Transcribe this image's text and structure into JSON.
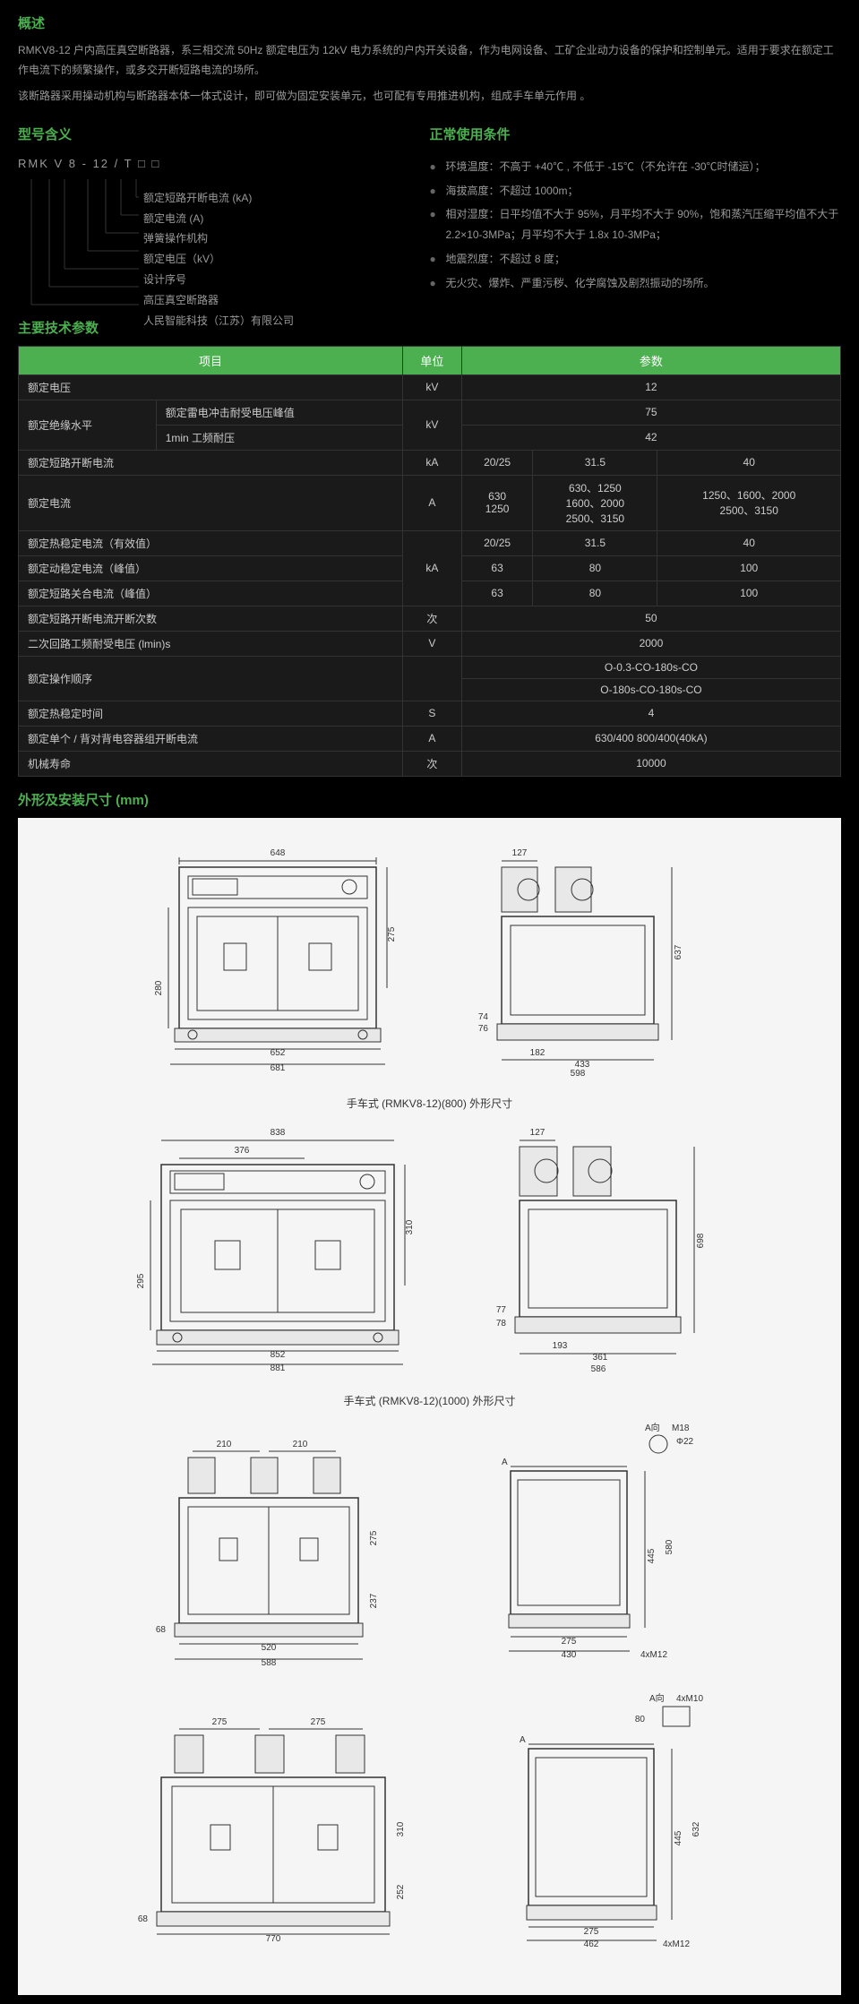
{
  "overview": {
    "title": "概述",
    "p1": "RMKV8-12 户内高压真空断路器，系三相交流 50Hz 额定电压为 12kV 电力系统的户内开关设备，作为电网设备、工矿企业动力设备的保护和控制单元。适用于要求在额定工作电流下的频繁操作，或多交开断短路电流的场所。",
    "p2": "该断路器采用操动机构与断路器本体一体式设计，即可做为固定安装单元，也可配有专用推进机构，组成手车单元作用 。"
  },
  "model": {
    "title": "型号含义",
    "code": "RMK  V  8  -  12 / T □  □",
    "lines": [
      "额定短路开断电流 (kA)",
      "额定电流 (A)",
      "弹簧操作机构",
      "额定电压（kV）",
      "设计序号",
      "高压真空断路器",
      "人民智能科技（江苏）有限公司"
    ]
  },
  "conditions": {
    "title": "正常使用条件",
    "items": [
      "环境温度：不高于 +40℃ , 不低于 -15℃（不允许在 -30℃时储运）；",
      "海拔高度：不超过 1000m；",
      "相对湿度：日平均值不大于 95%，月平均不大于 90%，饱和蒸汽压缩平均值不大于 2.2×10-3MPa；月平均不大于 1.8x 10-3MPa；",
      "地震烈度：不超过 8 度；",
      "无火灾、爆炸、严重污秽、化学腐蚀及剧烈振动的场所。"
    ]
  },
  "params": {
    "title": "主要技术参数",
    "headers": [
      "项目",
      "单位",
      "参数"
    ],
    "rows": [
      {
        "label": "额定电压",
        "unit": "kV",
        "values": [
          "12"
        ],
        "span": 3
      },
      {
        "label": "额定绝缘水平",
        "sublabel": "额定雷电冲击耐受电压峰值",
        "unit": "kV",
        "values": [
          "75"
        ],
        "span": 3,
        "rowspan": 2
      },
      {
        "sublabel": "1min 工频耐压",
        "values": [
          "42"
        ],
        "span": 3
      },
      {
        "label": "额定短路开断电流",
        "unit": "kA",
        "values": [
          "20/25",
          "31.5",
          "40"
        ]
      },
      {
        "label": "额定电流",
        "unit": "A",
        "values": [
          "630\n1250",
          "630、1250\n1600、2000\n2500、3150",
          "1250、1600、2000\n2500、3150"
        ]
      },
      {
        "label": "额定热稳定电流（有效值）",
        "unit": "kA",
        "values": [
          "20/25",
          "31.5",
          "40"
        ],
        "rowspan": 3
      },
      {
        "label": "额定动稳定电流（峰值）",
        "values": [
          "63",
          "80",
          "100"
        ]
      },
      {
        "label": "额定短路关合电流（峰值）",
        "values": [
          "63",
          "80",
          "100"
        ]
      },
      {
        "label": "额定短路开断电流开断次数",
        "unit": "次",
        "values": [
          "50"
        ],
        "span": 3
      },
      {
        "label": "二次回路工频耐受电压 (lmin)s",
        "unit": "V",
        "values": [
          "2000"
        ],
        "span": 3
      },
      {
        "label": "额定操作顺序",
        "unit": "",
        "values": [
          "O-0.3-CO-180s-CO"
        ],
        "span": 3,
        "rowspan": 2
      },
      {
        "values": [
          "O-180s-CO-180s-CO"
        ],
        "span": 3
      },
      {
        "label": "额定热稳定时间",
        "unit": "S",
        "values": [
          "4"
        ],
        "span": 3
      },
      {
        "label": "额定单个 / 背对背电容器组开断电流",
        "unit": "A",
        "values": [
          "630/400 800/400(40kA)"
        ],
        "span": 3
      },
      {
        "label": "机械寿命",
        "unit": "次",
        "values": [
          "10000"
        ],
        "span": 3
      }
    ]
  },
  "dimensions": {
    "title": "外形及安装尺寸 (mm)",
    "captions": [
      "手车式 (RMKV8-12)(800) 外形尺寸",
      "手车式 (RMKV8-12)(1000) 外形尺寸"
    ],
    "d1": {
      "w1": "648",
      "w2": "652",
      "w3": "681",
      "h1": "280",
      "h2": "275",
      "sw1": "127",
      "sw2": "182",
      "sw3": "433",
      "sw4": "598",
      "sh1": "637",
      "sh2": "74",
      "sh3": "76"
    },
    "d2": {
      "w1": "838",
      "w2": "376",
      "w3": "852",
      "w4": "881",
      "h1": "295",
      "h2": "310",
      "sw1": "127",
      "sw2": "193",
      "sw3": "361",
      "sw4": "586",
      "sh1": "698",
      "sh2": "77",
      "sh3": "78"
    },
    "d3": {
      "w1": "210",
      "w2": "210",
      "w3": "520",
      "w4": "588",
      "h1": "275",
      "h2": "237",
      "h3": "68",
      "sw1": "275",
      "sw2": "430",
      "sh1": "445",
      "sh2": "580",
      "lbl1": "A向",
      "lbl2": "M18",
      "lbl3": "Φ22",
      "lbl4": "4xM12"
    },
    "d4": {
      "w1": "275",
      "w2": "275",
      "w3": "770",
      "h1": "310",
      "h2": "252",
      "h3": "68",
      "sw1": "275",
      "sw2": "462",
      "sh1": "445",
      "sh2": "632",
      "lbl1": "A向",
      "lbl2": "4xM10",
      "lbl3": "80",
      "lbl4": "4xM12"
    }
  }
}
